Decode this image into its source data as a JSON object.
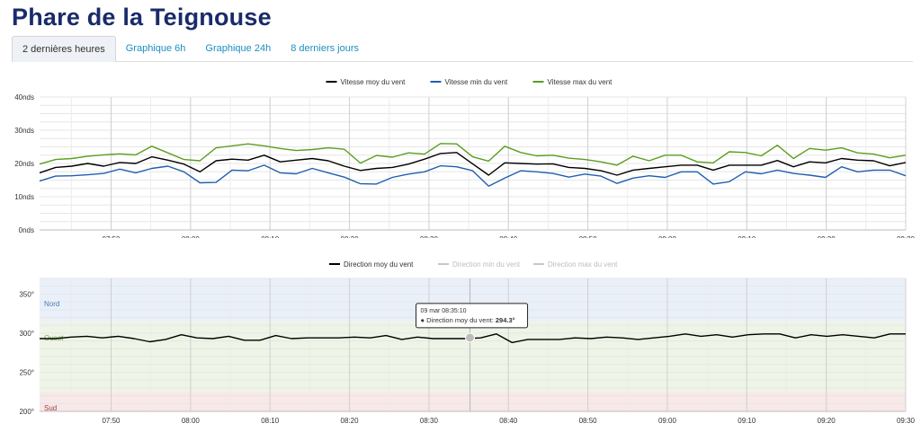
{
  "page": {
    "title": "Phare de la Teignouse"
  },
  "tabs": [
    {
      "label": "2 dernières heures",
      "active": true
    },
    {
      "label": "Graphique 6h",
      "active": false
    },
    {
      "label": "Graphique 24h",
      "active": false
    },
    {
      "label": "8 derniers jours",
      "active": false
    }
  ],
  "colors": {
    "title": "#1a2b6b",
    "tab_link": "#1d8fbf",
    "moy": "#000000",
    "min": "#1f5fb0",
    "max": "#5a9e1e",
    "legend_disabled": "#c8c8c8",
    "zone_nord": "#e9f0fa",
    "zone_ouest": "#eef5e6",
    "zone_sud": "#f8e8e8"
  },
  "chart_data": [
    {
      "type": "line",
      "title": "",
      "ylabel": "",
      "y_unit": "nds",
      "ylim": [
        0,
        40
      ],
      "yticks": [
        "0nds",
        "10nds",
        "20nds",
        "30nds",
        "40nds"
      ],
      "ytick_values": [
        0,
        10,
        20,
        30,
        40
      ],
      "x_start": "07:41",
      "x_end": "09:30",
      "xticks": [
        "07:50",
        "08:00",
        "08:10",
        "08:20",
        "08:30",
        "08:40",
        "08:50",
        "09:00",
        "09:10",
        "09:20",
        "09:30"
      ],
      "legend_position": "top-center",
      "grid": true,
      "series": [
        {
          "name": "Vitesse moy du vent",
          "color": "#000000",
          "values": [
            17.2,
            18.8,
            19.2,
            20,
            19.2,
            20.3,
            20,
            22,
            21,
            19.8,
            17.5,
            20.8,
            21.3,
            21,
            22.5,
            20.5,
            21,
            21.5,
            20.8,
            19.2,
            17.9,
            18.5,
            18.8,
            19.8,
            21.3,
            23,
            23.3,
            19.9,
            16.5,
            20.2,
            20,
            19.8,
            19.9,
            18.8,
            18.5,
            17.8,
            16.5,
            18,
            18.5,
            19,
            19.5,
            19.5,
            18,
            19.5,
            19.5,
            19.5,
            20.9,
            19,
            20.5,
            20.2,
            21.5,
            21,
            20.8,
            19.3,
            20.3
          ]
        },
        {
          "name": "Vitesse min du vent",
          "color": "#1f5fb0",
          "values": [
            14.7,
            16.2,
            16.3,
            16.6,
            17,
            18.3,
            17.2,
            18.5,
            19.2,
            17.5,
            14.2,
            14.3,
            18,
            17.8,
            19.5,
            17.2,
            16.9,
            18.5,
            17.2,
            15.9,
            13.9,
            13.8,
            15.8,
            16.8,
            17.5,
            19.3,
            19,
            17.8,
            13.2,
            15.6,
            17.8,
            17.5,
            17,
            15.9,
            16.8,
            16.2,
            14,
            15.6,
            16.3,
            15.8,
            17.5,
            17.5,
            13.8,
            14.5,
            17.5,
            16.9,
            18,
            17,
            16.5,
            15.8,
            19,
            17.5,
            18,
            18,
            16.3
          ]
        },
        {
          "name": "Vitesse max du vent",
          "color": "#5a9e1e",
          "values": [
            19.8,
            21.2,
            21.5,
            22.2,
            22.6,
            22.9,
            22.6,
            25.2,
            23.2,
            21.2,
            20.8,
            24.7,
            25.3,
            25.9,
            25.3,
            24.5,
            23.9,
            24.2,
            24.7,
            24.3,
            20.1,
            22.4,
            21.9,
            23.2,
            22.8,
            26,
            25.9,
            22,
            20.7,
            25.2,
            23.3,
            22.3,
            22.5,
            21.6,
            21.2,
            20.5,
            19.5,
            22.2,
            20.8,
            22.5,
            22.5,
            20.5,
            20.2,
            23.5,
            23.3,
            22.3,
            25.5,
            21.5,
            24.5,
            24,
            24.7,
            23.2,
            22.8,
            21.7,
            22.5
          ]
        }
      ]
    },
    {
      "type": "line",
      "title": "",
      "ylabel": "",
      "y_unit": "°",
      "ylim": [
        200,
        370
      ],
      "yticks": [
        "200°",
        "250°",
        "300°",
        "350°"
      ],
      "ytick_values": [
        200,
        250,
        300,
        350
      ],
      "x_start": "07:41",
      "x_end": "09:30",
      "xticks": [
        "07:50",
        "08:00",
        "08:10",
        "08:20",
        "08:30",
        "08:40",
        "08:50",
        "09:00",
        "09:10",
        "09:20",
        "09:30"
      ],
      "legend_position": "top-center",
      "grid": true,
      "zones": [
        {
          "label": "Nord",
          "from": 315,
          "to": 370,
          "color": "#e9f0fa",
          "label_color": "#4a7fb5"
        },
        {
          "label": "Ouest",
          "from": 225,
          "to": 315,
          "color": "#eef5e6",
          "label_color": "#6aa84f"
        },
        {
          "label": "Sud",
          "from": 200,
          "to": 225,
          "color": "#f8e8e8",
          "label_color": "#a04040"
        }
      ],
      "series": [
        {
          "name": "Direction moy du vent",
          "color": "#000000",
          "enabled": true,
          "values": [
            293,
            293,
            295,
            296,
            294,
            296,
            293,
            289,
            292,
            298,
            294,
            293,
            296,
            291,
            291,
            297,
            293,
            294,
            294,
            294,
            295,
            294,
            297,
            292,
            295,
            293,
            293,
            293,
            294,
            299,
            288,
            292,
            292,
            292,
            294,
            293,
            295,
            294,
            292,
            294,
            296,
            299,
            296,
            298,
            295,
            298,
            299,
            299,
            294,
            298,
            296,
            298,
            296,
            294,
            299,
            299
          ]
        },
        {
          "name": "Direction min du vent",
          "color": "#c8c8c8",
          "enabled": false,
          "values": []
        },
        {
          "name": "Direction max du vent",
          "color": "#c8c8c8",
          "enabled": false,
          "values": []
        }
      ],
      "tooltip": {
        "time": "09 mar 08:35:10",
        "series_label": "Direction moy du vent:",
        "value": "294.3°",
        "x_time": "08:35:10",
        "y": 294.3
      }
    }
  ]
}
